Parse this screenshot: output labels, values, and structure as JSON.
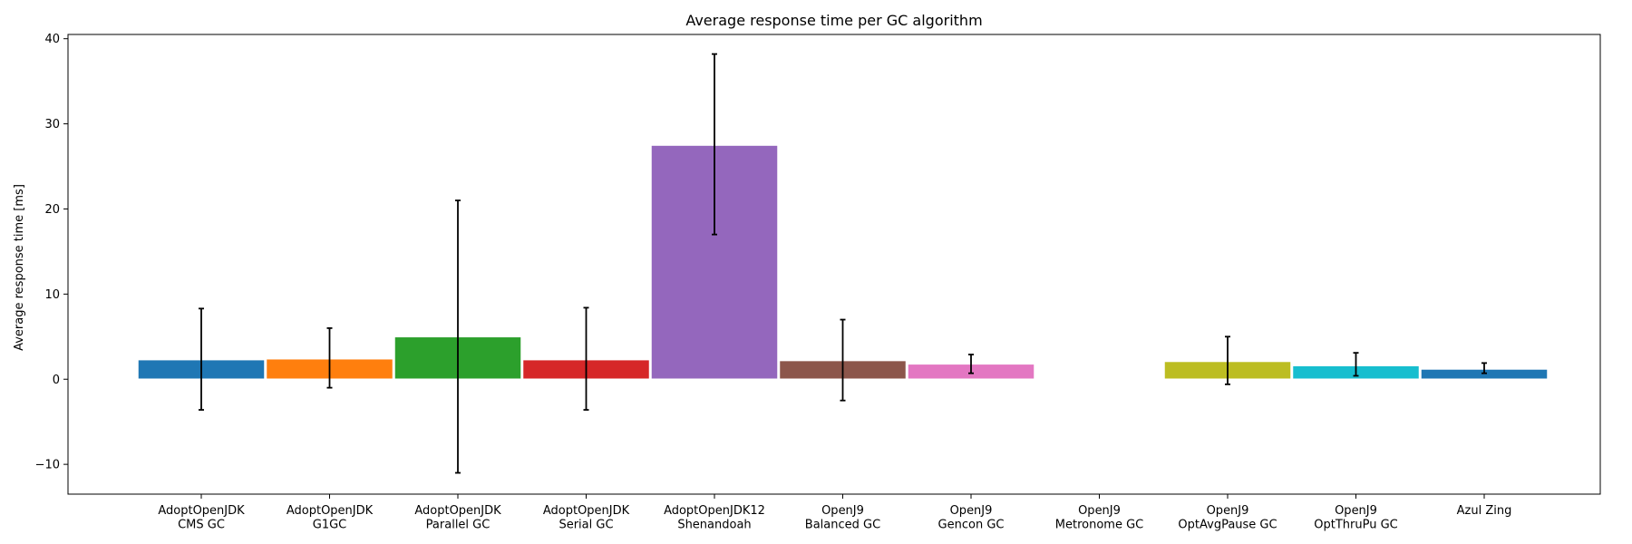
{
  "chart_data": {
    "type": "bar",
    "title": "Average response time per GC algorithm",
    "xlabel": "",
    "ylabel": "Average response time [ms]",
    "ylim": [
      -13.5,
      40.5
    ],
    "yticks": [
      -10,
      0,
      10,
      20,
      30,
      40
    ],
    "ytick_labels": [
      "−10",
      "0",
      "10",
      "20",
      "30",
      "40"
    ],
    "grid": false,
    "error_bars": true,
    "categories": [
      [
        "AdoptOpenJDK",
        "CMS GC"
      ],
      [
        "AdoptOpenJDK",
        "G1GC"
      ],
      [
        "AdoptOpenJDK",
        "Parallel GC"
      ],
      [
        "AdoptOpenJDK",
        "Serial GC"
      ],
      [
        "AdoptOpenJDK12",
        "Shenandoah"
      ],
      [
        "OpenJ9",
        "Balanced GC"
      ],
      [
        "OpenJ9",
        "Gencon GC"
      ],
      [
        "OpenJ9",
        "Metronome GC"
      ],
      [
        "OpenJ9",
        "OptAvgPause GC"
      ],
      [
        "OpenJ9",
        "OptThruPu GC"
      ],
      [
        "Azul Zing"
      ]
    ],
    "values": [
      2.3,
      2.4,
      5.0,
      2.3,
      27.5,
      2.2,
      1.8,
      null,
      2.1,
      1.6,
      1.2
    ],
    "error_low": [
      -3.6,
      -1.0,
      -11.0,
      -3.6,
      17.0,
      -2.5,
      0.7,
      null,
      -0.6,
      0.4,
      0.7
    ],
    "error_high": [
      8.3,
      6.0,
      21.0,
      8.4,
      38.2,
      7.0,
      2.9,
      null,
      5.0,
      3.1,
      1.9
    ],
    "colors": [
      "#1f77b4",
      "#ff7f0e",
      "#2ca02c",
      "#d62728",
      "#9467bd",
      "#8c564b",
      "#e377c2",
      "#7f7f7f",
      "#bcbd22",
      "#17becf",
      "#1f77b4"
    ]
  }
}
